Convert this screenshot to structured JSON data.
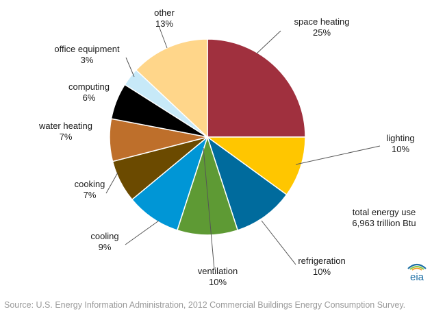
{
  "chart_data": {
    "type": "pie",
    "title": "",
    "slices": [
      {
        "name": "space heating",
        "value": 25,
        "label": "25%",
        "color": "#A0303E"
      },
      {
        "name": "lighting",
        "value": 10,
        "label": "10%",
        "color": "#FFC600"
      },
      {
        "name": "refrigeration",
        "value": 10,
        "label": "10%",
        "color": "#006B9D"
      },
      {
        "name": "ventilation",
        "value": 10,
        "label": "10%",
        "color": "#5E9A34"
      },
      {
        "name": "cooling",
        "value": 9,
        "label": "9%",
        "color": "#0096D6"
      },
      {
        "name": "cooking",
        "value": 7,
        "label": "7%",
        "color": "#6B4A00"
      },
      {
        "name": "water heating",
        "value": 7,
        "label": "7%",
        "color": "#BE6F2B"
      },
      {
        "name": "computing",
        "value": 6,
        "label": "6%",
        "color": "#000000"
      },
      {
        "name": "office equipment",
        "value": 3,
        "label": "3%",
        "color": "#C7E9F8"
      },
      {
        "name": "other",
        "value": 13,
        "label": "13%",
        "color": "#FFD68A"
      }
    ],
    "start_angle": "12 o'clock",
    "direction": "clockwise"
  },
  "annotation": {
    "line1": "total energy use",
    "line2": "6,963 trillion Btu"
  },
  "source": "Source: U.S. Energy Information Administration, 2012 Commercial Buildings Energy Consumption Survey.",
  "logo": {
    "text": "eia",
    "colors": [
      "#1C6EA4",
      "#8CC63F",
      "#F7941D"
    ]
  }
}
